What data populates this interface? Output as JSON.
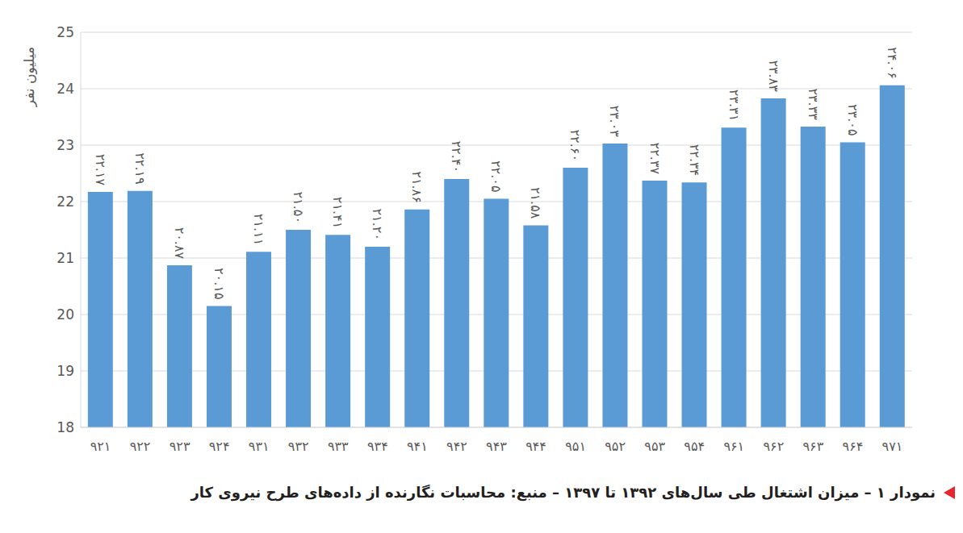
{
  "chart_data": {
    "type": "bar",
    "title": "نمودار ۱ – میزان اشتغال طی سال‌های ۱۳۹۲ تا ۱۳۹۷ – منبع: محاسبات نگارنده از داده‌های طرح نیروی کار",
    "y_label": "میلیون نفر",
    "categories": [
      "۹۲۱",
      "۹۲۲",
      "۹۲۳",
      "۹۲۴",
      "۹۳۱",
      "۹۳۲",
      "۹۳۳",
      "۹۳۴",
      "۹۴۱",
      "۹۴۲",
      "۹۴۳",
      "۹۴۴",
      "۹۵۱",
      "۹۵۲",
      "۹۵۳",
      "۹۵۴",
      "۹۶۱",
      "۹۶۲",
      "۹۶۳",
      "۹۶۴",
      "۹۷۱"
    ],
    "values": [
      22.17,
      22.19,
      20.87,
      20.15,
      21.11,
      21.5,
      21.41,
      21.2,
      21.86,
      22.4,
      22.05,
      21.58,
      22.6,
      23.03,
      22.37,
      22.34,
      23.31,
      23.83,
      23.33,
      23.05,
      24.06
    ],
    "value_labels": [
      "۲۲.۱۷",
      "۲۲.۱۹",
      "۲۰.۸۷",
      "۲۰.۱۵",
      "۲۱.۱۱",
      "۲۱.۵۰",
      "۲۱.۴۱",
      "۲۱.۲۰",
      "۲۱.۸۶",
      "۲۲.۴۰",
      "۲۲.۰۵",
      "۲۱.۵۸",
      "۲۲.۶۰",
      "۲۳.۰۳",
      "۲۲.۳۷",
      "۲۲.۳۴",
      "۲۳.۳۱",
      "۲۳.۸۳",
      "۲۳.۳۳",
      "۲۳.۰۵",
      "۲۴.۰۶"
    ],
    "color": "#5b9bd5",
    "ylim": [
      18,
      25
    ],
    "yticks": [
      18,
      19,
      20,
      21,
      22,
      23,
      24,
      25
    ],
    "grid": true,
    "data_labels": true
  }
}
